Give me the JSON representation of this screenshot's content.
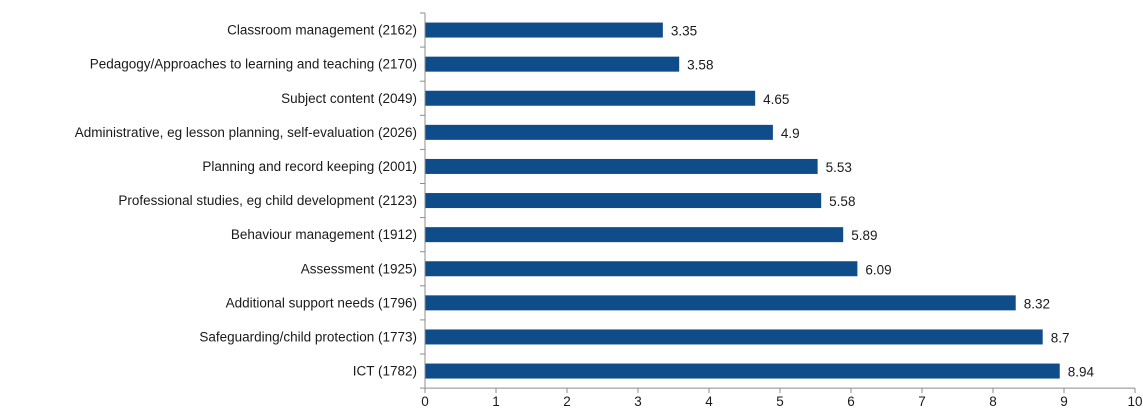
{
  "chart_data": {
    "type": "bar",
    "orientation": "horizontal",
    "categories": [
      "Classroom management (2162)",
      "Pedagogy/Approaches to learning and teaching (2170)",
      "Subject content (2049)",
      "Administrative, eg lesson planning, self-evaluation (2026)",
      "Planning and record keeping (2001)",
      "Professional studies, eg child development (2123)",
      "Behaviour management (1912)",
      "Assessment (1925)",
      "Additional support needs (1796)",
      "Safeguarding/child protection (1773)",
      "ICT (1782)"
    ],
    "values": [
      3.35,
      3.58,
      4.65,
      4.9,
      5.53,
      5.58,
      5.89,
      6.09,
      8.32,
      8.7,
      8.94
    ],
    "value_labels": [
      "3.35",
      "3.58",
      "4.65",
      "4.9",
      "5.53",
      "5.58",
      "5.89",
      "6.09",
      "8.32",
      "8.7",
      "8.94"
    ],
    "xticks": [
      "0",
      "1",
      "2",
      "3",
      "4",
      "5",
      "6",
      "7",
      "8",
      "9",
      "10"
    ],
    "xlim": [
      0,
      10
    ],
    "title": "",
    "xlabel": "",
    "ylabel": "",
    "grid": false,
    "legend": "none",
    "bar_color": "#0f4c8a"
  }
}
